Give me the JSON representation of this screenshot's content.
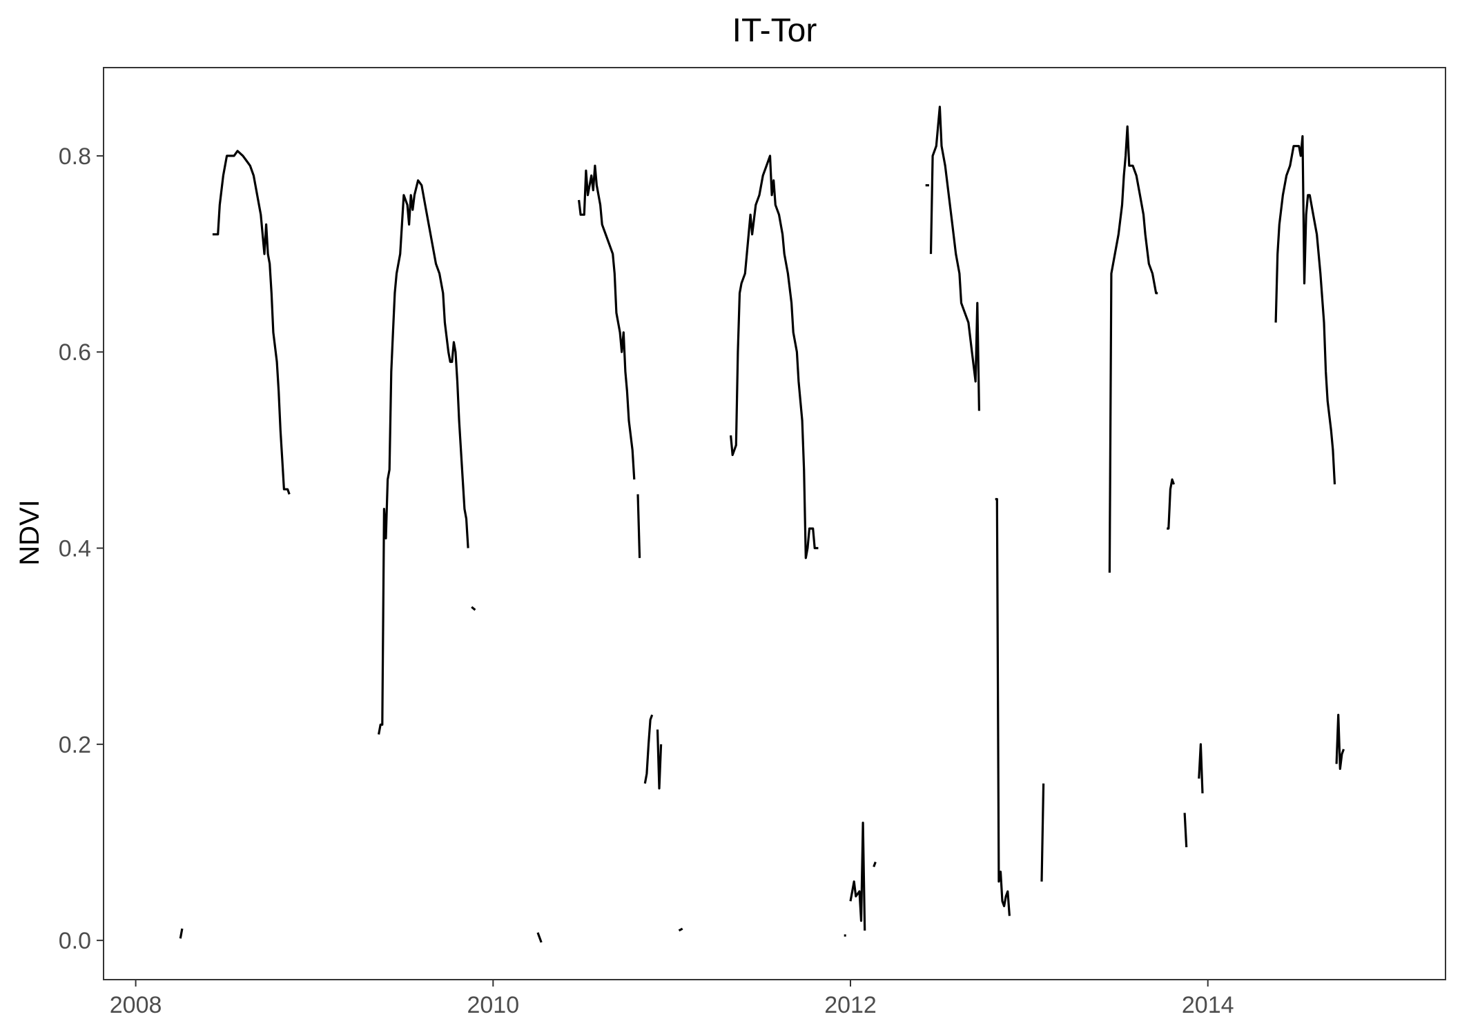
{
  "chart_data": {
    "type": "line",
    "title": "IT-Tor",
    "xlabel": "",
    "ylabel": "NDVI",
    "xlim": [
      2007.82,
      2015.33
    ],
    "ylim": [
      -0.04,
      0.89
    ],
    "x_ticks": [
      2008,
      2010,
      2012,
      2014
    ],
    "x_tick_labels": [
      "2008",
      "2010",
      "2012",
      "2014"
    ],
    "y_ticks": [
      0.0,
      0.2,
      0.4,
      0.6,
      0.8
    ],
    "y_tick_labels": [
      "0.0",
      "0.2",
      "0.4",
      "0.6",
      "0.8"
    ],
    "grid": false,
    "legend": "none",
    "colors": {
      "line": "#000000",
      "axis": "#333333",
      "tick_text": "#4d4d4d",
      "background": "#ffffff"
    },
    "segments": [
      [
        [
          2008.25,
          0.002
        ],
        [
          2008.26,
          0.012
        ]
      ],
      [
        [
          2008.43,
          0.72
        ],
        [
          2008.46,
          0.72
        ],
        [
          2008.47,
          0.75
        ],
        [
          2008.49,
          0.78
        ],
        [
          2008.5,
          0.79
        ],
        [
          2008.51,
          0.8
        ],
        [
          2008.55,
          0.8
        ],
        [
          2008.57,
          0.805
        ],
        [
          2008.6,
          0.8
        ],
        [
          2008.62,
          0.795
        ],
        [
          2008.64,
          0.79
        ],
        [
          2008.66,
          0.78
        ],
        [
          2008.67,
          0.77
        ],
        [
          2008.68,
          0.76
        ],
        [
          2008.7,
          0.74
        ],
        [
          2008.71,
          0.72
        ],
        [
          2008.72,
          0.7
        ],
        [
          2008.73,
          0.73
        ],
        [
          2008.74,
          0.7
        ],
        [
          2008.75,
          0.69
        ],
        [
          2008.76,
          0.66
        ],
        [
          2008.77,
          0.62
        ],
        [
          2008.79,
          0.59
        ],
        [
          2008.8,
          0.56
        ],
        [
          2008.81,
          0.52
        ],
        [
          2008.82,
          0.49
        ],
        [
          2008.83,
          0.46
        ],
        [
          2008.85,
          0.46
        ],
        [
          2008.86,
          0.455
        ]
      ],
      [
        [
          2009.36,
          0.21
        ],
        [
          2009.37,
          0.22
        ],
        [
          2009.38,
          0.22
        ],
        [
          2009.39,
          0.44
        ],
        [
          2009.4,
          0.41
        ],
        [
          2009.41,
          0.47
        ],
        [
          2009.42,
          0.48
        ],
        [
          2009.43,
          0.58
        ],
        [
          2009.44,
          0.62
        ],
        [
          2009.45,
          0.66
        ],
        [
          2009.46,
          0.68
        ],
        [
          2009.48,
          0.7
        ],
        [
          2009.49,
          0.73
        ],
        [
          2009.5,
          0.76
        ],
        [
          2009.52,
          0.75
        ],
        [
          2009.53,
          0.73
        ],
        [
          2009.54,
          0.76
        ],
        [
          2009.55,
          0.745
        ],
        [
          2009.56,
          0.76
        ],
        [
          2009.58,
          0.775
        ],
        [
          2009.6,
          0.77
        ],
        [
          2009.62,
          0.75
        ],
        [
          2009.64,
          0.73
        ],
        [
          2009.66,
          0.71
        ],
        [
          2009.68,
          0.69
        ],
        [
          2009.7,
          0.68
        ],
        [
          2009.72,
          0.66
        ],
        [
          2009.73,
          0.63
        ],
        [
          2009.75,
          0.6
        ],
        [
          2009.76,
          0.59
        ],
        [
          2009.77,
          0.59
        ],
        [
          2009.78,
          0.61
        ],
        [
          2009.79,
          0.6
        ],
        [
          2009.8,
          0.57
        ],
        [
          2009.81,
          0.53
        ],
        [
          2009.82,
          0.5
        ],
        [
          2009.83,
          0.47
        ],
        [
          2009.84,
          0.44
        ],
        [
          2009.85,
          0.43
        ],
        [
          2009.86,
          0.4
        ]
      ],
      [
        [
          2009.88,
          0.34
        ],
        [
          2009.9,
          0.337
        ]
      ],
      [
        [
          2010.25,
          0.008
        ],
        [
          2010.27,
          -0.002
        ]
      ],
      [
        [
          2010.48,
          0.755
        ],
        [
          2010.49,
          0.74
        ],
        [
          2010.51,
          0.74
        ],
        [
          2010.52,
          0.785
        ],
        [
          2010.53,
          0.76
        ],
        [
          2010.55,
          0.78
        ],
        [
          2010.56,
          0.765
        ],
        [
          2010.57,
          0.79
        ],
        [
          2010.58,
          0.77
        ],
        [
          2010.6,
          0.75
        ],
        [
          2010.61,
          0.73
        ],
        [
          2010.63,
          0.72
        ],
        [
          2010.65,
          0.71
        ],
        [
          2010.67,
          0.7
        ],
        [
          2010.68,
          0.68
        ],
        [
          2010.69,
          0.64
        ],
        [
          2010.71,
          0.62
        ],
        [
          2010.72,
          0.6
        ],
        [
          2010.73,
          0.62
        ],
        [
          2010.74,
          0.58
        ],
        [
          2010.75,
          0.56
        ],
        [
          2010.76,
          0.53
        ],
        [
          2010.78,
          0.5
        ],
        [
          2010.79,
          0.47
        ]
      ],
      [
        [
          2010.81,
          0.455
        ],
        [
          2010.82,
          0.39
        ]
      ],
      [
        [
          2010.85,
          0.16
        ],
        [
          2010.86,
          0.17
        ],
        [
          2010.87,
          0.2
        ],
        [
          2010.88,
          0.225
        ],
        [
          2010.89,
          0.23
        ]
      ],
      [
        [
          2010.92,
          0.215
        ],
        [
          2010.93,
          0.155
        ],
        [
          2010.94,
          0.2
        ]
      ],
      [
        [
          2011.04,
          0.01
        ],
        [
          2011.06,
          0.012
        ]
      ],
      [
        [
          2011.33,
          0.515
        ],
        [
          2011.34,
          0.495
        ],
        [
          2011.36,
          0.505
        ],
        [
          2011.37,
          0.6
        ],
        [
          2011.38,
          0.66
        ],
        [
          2011.39,
          0.67
        ],
        [
          2011.41,
          0.68
        ],
        [
          2011.42,
          0.7
        ],
        [
          2011.44,
          0.74
        ],
        [
          2011.45,
          0.72
        ],
        [
          2011.47,
          0.75
        ],
        [
          2011.49,
          0.76
        ],
        [
          2011.51,
          0.78
        ],
        [
          2011.53,
          0.79
        ],
        [
          2011.55,
          0.8
        ],
        [
          2011.56,
          0.76
        ],
        [
          2011.57,
          0.775
        ],
        [
          2011.58,
          0.75
        ],
        [
          2011.6,
          0.74
        ],
        [
          2011.62,
          0.72
        ],
        [
          2011.63,
          0.7
        ],
        [
          2011.65,
          0.68
        ],
        [
          2011.67,
          0.65
        ],
        [
          2011.68,
          0.62
        ],
        [
          2011.7,
          0.6
        ],
        [
          2011.71,
          0.57
        ],
        [
          2011.72,
          0.55
        ],
        [
          2011.73,
          0.53
        ],
        [
          2011.74,
          0.48
        ],
        [
          2011.75,
          0.39
        ],
        [
          2011.76,
          0.4
        ],
        [
          2011.77,
          0.42
        ],
        [
          2011.79,
          0.42
        ],
        [
          2011.8,
          0.4
        ],
        [
          2011.82,
          0.4
        ]
      ],
      [
        [
          2011.97,
          0.005
        ]
      ],
      [
        [
          2012.0,
          0.04
        ],
        [
          2012.02,
          0.06
        ],
        [
          2012.03,
          0.045
        ],
        [
          2012.05,
          0.05
        ],
        [
          2012.06,
          0.02
        ],
        [
          2012.07,
          0.12
        ],
        [
          2012.08,
          0.01
        ]
      ],
      [
        [
          2012.13,
          0.075
        ],
        [
          2012.14,
          0.08
        ]
      ],
      [
        [
          2012.42,
          0.77
        ],
        [
          2012.44,
          0.77
        ]
      ],
      [
        [
          2012.45,
          0.7
        ],
        [
          2012.46,
          0.8
        ],
        [
          2012.48,
          0.81
        ],
        [
          2012.5,
          0.85
        ],
        [
          2012.51,
          0.81
        ],
        [
          2012.53,
          0.79
        ],
        [
          2012.55,
          0.76
        ],
        [
          2012.57,
          0.73
        ],
        [
          2012.59,
          0.7
        ],
        [
          2012.61,
          0.68
        ],
        [
          2012.62,
          0.65
        ],
        [
          2012.64,
          0.64
        ],
        [
          2012.66,
          0.63
        ],
        [
          2012.68,
          0.6
        ],
        [
          2012.7,
          0.57
        ],
        [
          2012.71,
          0.65
        ],
        [
          2012.72,
          0.54
        ]
      ],
      [
        [
          2012.81,
          0.45
        ],
        [
          2012.82,
          0.45
        ],
        [
          2012.83,
          0.06
        ],
        [
          2012.84,
          0.07
        ],
        [
          2012.85,
          0.04
        ],
        [
          2012.86,
          0.035
        ],
        [
          2012.87,
          0.045
        ],
        [
          2012.88,
          0.05
        ],
        [
          2012.89,
          0.025
        ]
      ],
      [
        [
          2013.07,
          0.06
        ],
        [
          2013.08,
          0.16
        ]
      ],
      [
        [
          2013.45,
          0.375
        ],
        [
          2013.46,
          0.68
        ],
        [
          2013.48,
          0.7
        ],
        [
          2013.5,
          0.72
        ],
        [
          2013.52,
          0.75
        ],
        [
          2013.53,
          0.78
        ],
        [
          2013.54,
          0.8
        ],
        [
          2013.55,
          0.83
        ],
        [
          2013.56,
          0.79
        ],
        [
          2013.58,
          0.79
        ],
        [
          2013.6,
          0.78
        ],
        [
          2013.62,
          0.76
        ],
        [
          2013.64,
          0.74
        ],
        [
          2013.65,
          0.72
        ],
        [
          2013.67,
          0.69
        ],
        [
          2013.69,
          0.68
        ],
        [
          2013.71,
          0.66
        ],
        [
          2013.72,
          0.66
        ]
      ],
      [
        [
          2013.77,
          0.42
        ],
        [
          2013.78,
          0.42
        ],
        [
          2013.79,
          0.46
        ],
        [
          2013.8,
          0.47
        ],
        [
          2013.81,
          0.465
        ]
      ],
      [
        [
          2013.87,
          0.13
        ],
        [
          2013.88,
          0.095
        ]
      ],
      [
        [
          2013.95,
          0.165
        ],
        [
          2013.96,
          0.2
        ],
        [
          2013.97,
          0.15
        ]
      ],
      [
        [
          2014.38,
          0.63
        ],
        [
          2014.39,
          0.7
        ],
        [
          2014.4,
          0.73
        ],
        [
          2014.42,
          0.76
        ],
        [
          2014.44,
          0.78
        ],
        [
          2014.46,
          0.79
        ],
        [
          2014.48,
          0.81
        ],
        [
          2014.51,
          0.81
        ],
        [
          2014.52,
          0.8
        ],
        [
          2014.53,
          0.82
        ],
        [
          2014.54,
          0.67
        ],
        [
          2014.55,
          0.74
        ],
        [
          2014.56,
          0.76
        ],
        [
          2014.57,
          0.76
        ],
        [
          2014.59,
          0.74
        ],
        [
          2014.61,
          0.72
        ],
        [
          2014.63,
          0.68
        ],
        [
          2014.65,
          0.63
        ],
        [
          2014.66,
          0.58
        ],
        [
          2014.67,
          0.55
        ],
        [
          2014.69,
          0.52
        ],
        [
          2014.7,
          0.5
        ],
        [
          2014.71,
          0.465
        ]
      ],
      [
        [
          2014.72,
          0.18
        ],
        [
          2014.73,
          0.23
        ],
        [
          2014.74,
          0.175
        ],
        [
          2014.75,
          0.19
        ],
        [
          2014.76,
          0.195
        ]
      ]
    ]
  }
}
